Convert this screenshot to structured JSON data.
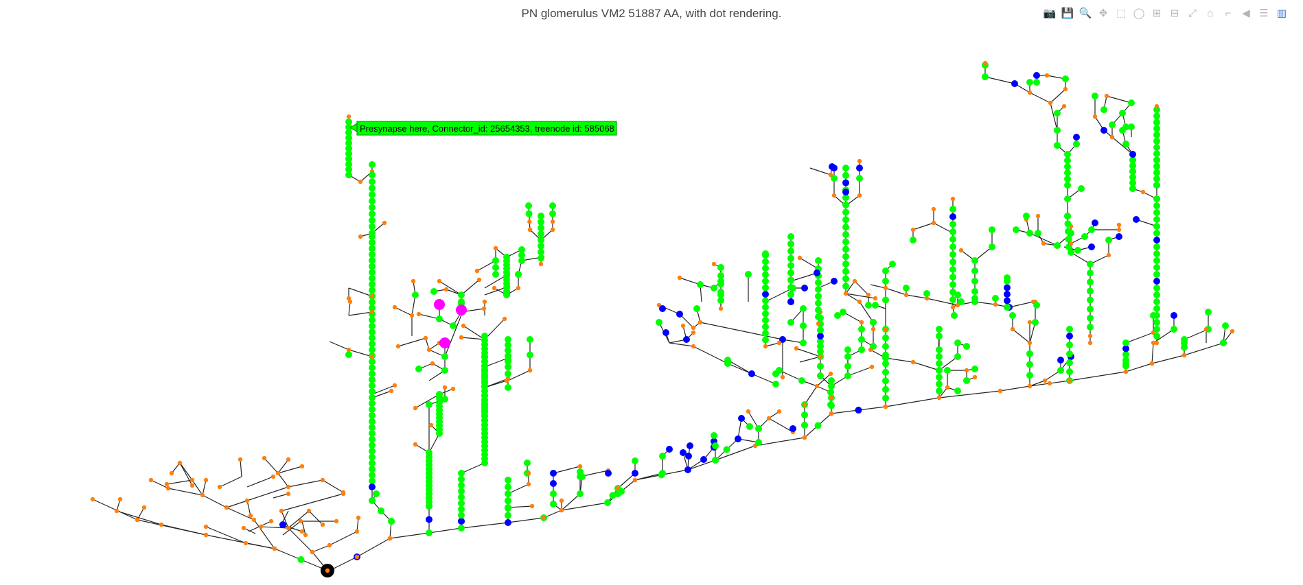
{
  "title": "PN glomerulus VM2 51887 AA, with dot rendering.",
  "modebar": [
    {
      "name": "camera-icon",
      "glyph": "📷"
    },
    {
      "name": "save-icon",
      "glyph": "💾"
    },
    {
      "name": "zoom-icon",
      "glyph": "🔍",
      "active": true
    },
    {
      "name": "pan-icon",
      "glyph": "✥"
    },
    {
      "name": "box-select-icon",
      "glyph": "⬚"
    },
    {
      "name": "lasso-icon",
      "glyph": "◯"
    },
    {
      "name": "zoom-in-icon",
      "glyph": "⊞"
    },
    {
      "name": "zoom-out-icon",
      "glyph": "⊟"
    },
    {
      "name": "autoscale-icon",
      "glyph": "⤢"
    },
    {
      "name": "home-icon",
      "glyph": "⌂"
    },
    {
      "name": "spike-lines-icon",
      "glyph": "⌐"
    },
    {
      "name": "hover-closest-icon",
      "glyph": "◀"
    },
    {
      "name": "hover-compare-icon",
      "glyph": "☰"
    },
    {
      "name": "plotly-logo-icon",
      "glyph": "▥",
      "active": true
    }
  ],
  "tooltip": {
    "text": "Presynapse here, Connector_id: 25654353, treenode id: 585068",
    "bg": "#00ff00",
    "border": "#008800"
  },
  "colors": {
    "branch": "#ff7f0e",
    "presynapse": "#00ff00",
    "postsynapse": "#0000ff",
    "highlight": "#ff00ff",
    "soma": "#000000",
    "edge": "#222222"
  }
}
